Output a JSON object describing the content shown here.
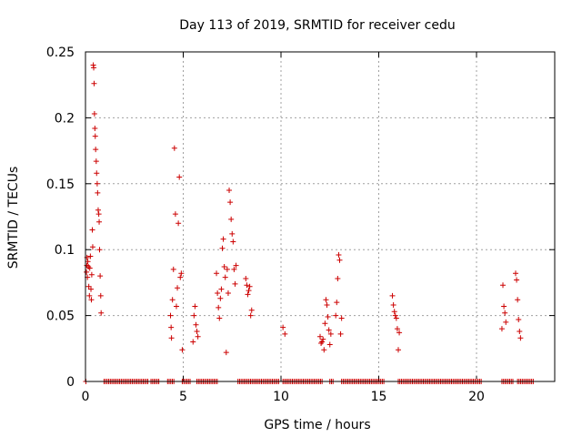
{
  "chart_data": {
    "type": "scatter",
    "title": "Day 113 of 2019, SRMTID for receiver cedu",
    "xlabel": "GPS time / hours",
    "ylabel": "SRMTID / TECUs",
    "xlim": [
      0,
      24
    ],
    "ylim": [
      0,
      0.25
    ],
    "x_ticks": [
      0,
      5,
      10,
      15,
      20
    ],
    "x_tick_labels": [
      "0",
      "5",
      "10",
      "15",
      "20"
    ],
    "y_ticks": [
      0,
      0.05,
      0.1,
      0.15,
      0.2,
      0.25
    ],
    "y_tick_labels": [
      "0",
      "0.05",
      "0.1",
      "0.15",
      "0.2",
      "0.25"
    ],
    "grid": true,
    "marker": "plus",
    "series": [
      {
        "name": "SRMTID",
        "color": "#cc0000",
        "points": [
          [
            0.02,
            0.0
          ],
          [
            0.05,
            0.083
          ],
          [
            0.07,
            0.088
          ],
          [
            0.08,
            0.094
          ],
          [
            0.1,
            0.079
          ],
          [
            0.12,
            0.091
          ],
          [
            0.15,
            0.087
          ],
          [
            0.17,
            0.072
          ],
          [
            0.2,
            0.065
          ],
          [
            0.22,
            0.086
          ],
          [
            0.25,
            0.095
          ],
          [
            0.28,
            0.07
          ],
          [
            0.3,
            0.062
          ],
          [
            0.32,
            0.081
          ],
          [
            0.35,
            0.115
          ],
          [
            0.37,
            0.102
          ],
          [
            0.4,
            0.24
          ],
          [
            0.42,
            0.238
          ],
          [
            0.44,
            0.226
          ],
          [
            0.46,
            0.203
          ],
          [
            0.48,
            0.192
          ],
          [
            0.5,
            0.186
          ],
          [
            0.52,
            0.176
          ],
          [
            0.55,
            0.167
          ],
          [
            0.57,
            0.158
          ],
          [
            0.6,
            0.15
          ],
          [
            0.62,
            0.143
          ],
          [
            0.65,
            0.13
          ],
          [
            0.68,
            0.127
          ],
          [
            0.7,
            0.121
          ],
          [
            0.72,
            0.1
          ],
          [
            0.75,
            0.08
          ],
          [
            0.78,
            0.065
          ],
          [
            0.8,
            0.052
          ],
          [
            4.35,
            0.05
          ],
          [
            4.38,
            0.041
          ],
          [
            4.4,
            0.033
          ],
          [
            4.45,
            0.062
          ],
          [
            4.5,
            0.085
          ],
          [
            4.55,
            0.177
          ],
          [
            4.6,
            0.127
          ],
          [
            4.65,
            0.057
          ],
          [
            4.7,
            0.071
          ],
          [
            4.75,
            0.12
          ],
          [
            4.8,
            0.155
          ],
          [
            4.85,
            0.079
          ],
          [
            4.9,
            0.082
          ],
          [
            4.95,
            0.024
          ],
          [
            5.5,
            0.03
          ],
          [
            5.55,
            0.05
          ],
          [
            5.6,
            0.057
          ],
          [
            5.65,
            0.043
          ],
          [
            5.7,
            0.038
          ],
          [
            5.75,
            0.034
          ],
          [
            6.7,
            0.082
          ],
          [
            6.75,
            0.067
          ],
          [
            6.8,
            0.056
          ],
          [
            6.85,
            0.048
          ],
          [
            6.9,
            0.063
          ],
          [
            6.95,
            0.07
          ],
          [
            7.0,
            0.101
          ],
          [
            7.05,
            0.108
          ],
          [
            7.1,
            0.087
          ],
          [
            7.15,
            0.079
          ],
          [
            7.2,
            0.022
          ],
          [
            7.25,
            0.085
          ],
          [
            7.3,
            0.067
          ],
          [
            7.35,
            0.145
          ],
          [
            7.4,
            0.136
          ],
          [
            7.45,
            0.123
          ],
          [
            7.5,
            0.112
          ],
          [
            7.55,
            0.106
          ],
          [
            7.6,
            0.085
          ],
          [
            7.65,
            0.074
          ],
          [
            7.7,
            0.088
          ],
          [
            8.2,
            0.078
          ],
          [
            8.25,
            0.073
          ],
          [
            8.3,
            0.066
          ],
          [
            8.35,
            0.069
          ],
          [
            8.4,
            0.072
          ],
          [
            8.45,
            0.05
          ],
          [
            8.5,
            0.054
          ],
          [
            10.1,
            0.041
          ],
          [
            10.2,
            0.036
          ],
          [
            12.0,
            0.034
          ],
          [
            12.05,
            0.029
          ],
          [
            12.1,
            0.03
          ],
          [
            12.15,
            0.032
          ],
          [
            12.2,
            0.024
          ],
          [
            12.25,
            0.044
          ],
          [
            12.3,
            0.062
          ],
          [
            12.35,
            0.058
          ],
          [
            12.4,
            0.049
          ],
          [
            12.45,
            0.039
          ],
          [
            12.5,
            0.028
          ],
          [
            12.55,
            0.036
          ],
          [
            12.8,
            0.05
          ],
          [
            12.85,
            0.06
          ],
          [
            12.9,
            0.078
          ],
          [
            12.95,
            0.096
          ],
          [
            13.0,
            0.092
          ],
          [
            13.05,
            0.036
          ],
          [
            13.1,
            0.048
          ],
          [
            15.7,
            0.065
          ],
          [
            15.75,
            0.058
          ],
          [
            15.8,
            0.053
          ],
          [
            15.85,
            0.05
          ],
          [
            15.9,
            0.048
          ],
          [
            15.95,
            0.04
          ],
          [
            16.0,
            0.024
          ],
          [
            16.05,
            0.037
          ],
          [
            21.3,
            0.04
          ],
          [
            21.35,
            0.073
          ],
          [
            21.4,
            0.057
          ],
          [
            21.45,
            0.052
          ],
          [
            21.5,
            0.045
          ],
          [
            22.0,
            0.082
          ],
          [
            22.05,
            0.077
          ],
          [
            22.1,
            0.062
          ],
          [
            22.15,
            0.047
          ],
          [
            22.2,
            0.038
          ],
          [
            22.25,
            0.033
          ]
        ]
      }
    ],
    "zero_runs": [
      [
        0.95,
        3.2
      ],
      [
        3.35,
        3.8
      ],
      [
        4.2,
        4.55
      ],
      [
        4.95,
        5.35
      ],
      [
        5.7,
        6.8
      ],
      [
        7.8,
        9.9
      ],
      [
        10.1,
        12.1
      ],
      [
        12.5,
        12.7
      ],
      [
        13.1,
        15.3
      ],
      [
        16.0,
        20.3
      ],
      [
        21.3,
        21.9
      ],
      [
        22.1,
        22.9
      ]
    ]
  }
}
